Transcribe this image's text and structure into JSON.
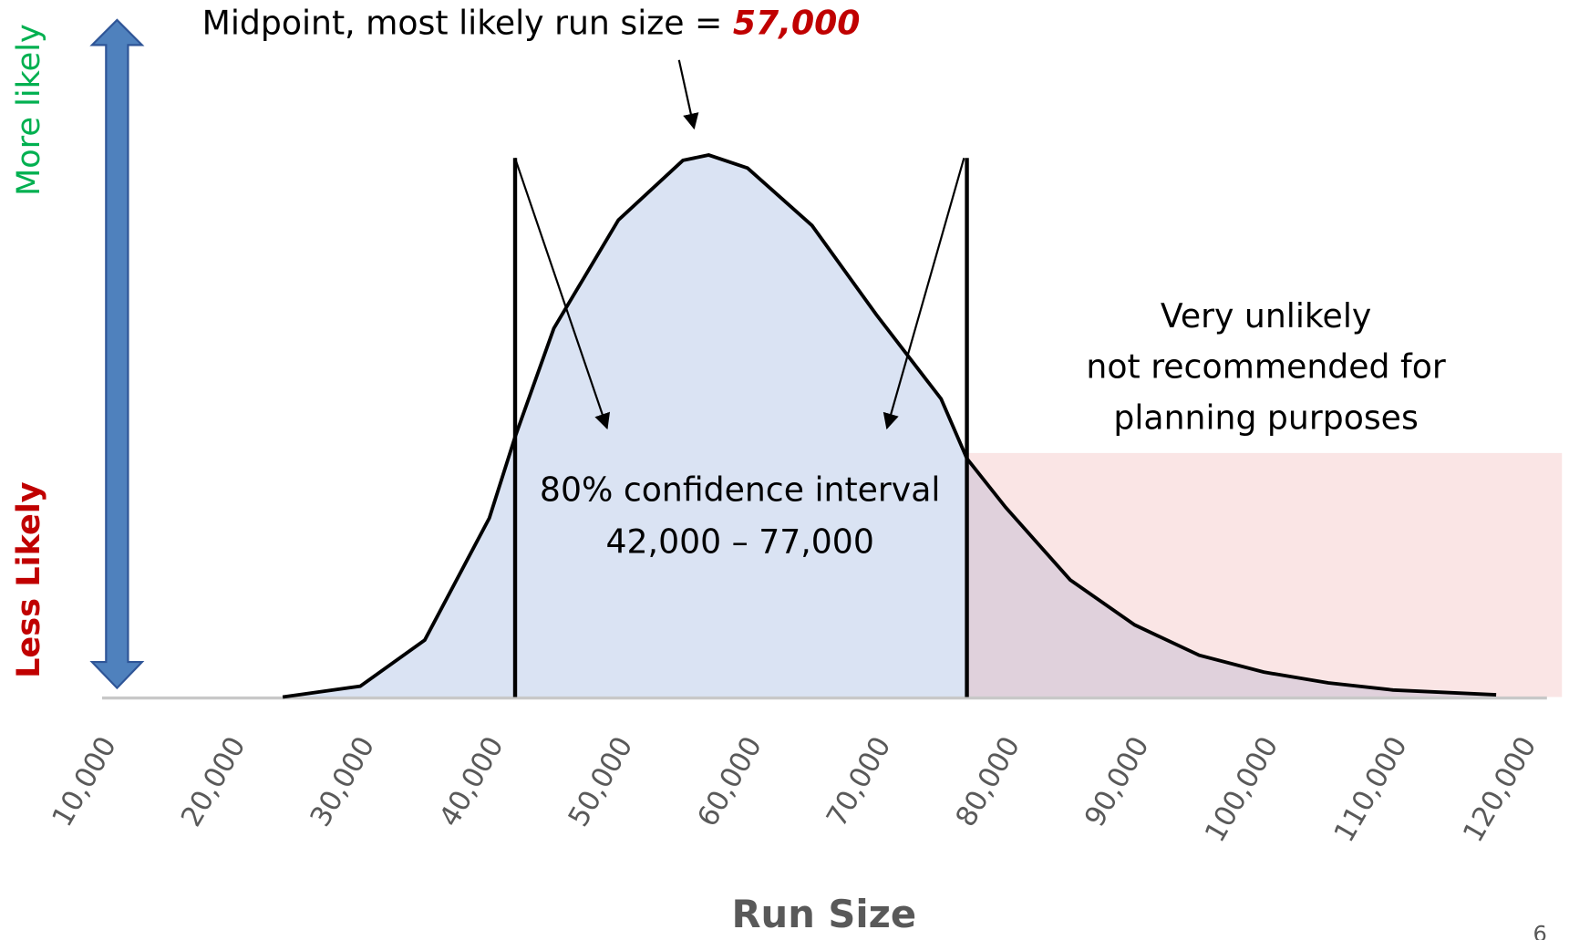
{
  "chart_data": {
    "type": "area",
    "annotation_prefix": "Midpoint, most likely run size = ",
    "midpoint_label": "57,000",
    "interval_title": "80% confidence interval",
    "interval_label": "42,000 – 77,000",
    "interval": [
      42000,
      77000
    ],
    "tail_note": [
      "Very unlikely",
      "not recommended for",
      "planning purposes"
    ],
    "y_top_label": "More likely",
    "y_bottom_label": "Less Likely",
    "xlabel": "Run Size",
    "page_number": "6",
    "color": "#dae3f3",
    "x": [
      24000,
      30000,
      35000,
      40000,
      42000,
      45000,
      50000,
      55000,
      57000,
      60000,
      65000,
      70000,
      75000,
      77000,
      80000,
      85000,
      90000,
      95000,
      100000,
      105000,
      110000,
      118000
    ],
    "values": [
      0,
      2,
      10.5,
      33,
      48,
      68,
      88,
      99,
      100,
      97.6,
      87,
      70.5,
      55,
      44,
      35,
      21.6,
      13.3,
      7.7,
      4.6,
      2.6,
      1.3,
      0.4
    ],
    "xlim": [
      10000,
      120000
    ],
    "ylim": [
      0,
      100
    ],
    "xticks": [
      {
        "value": 10000,
        "label": "10,000"
      },
      {
        "value": 20000,
        "label": "20,000"
      },
      {
        "value": 30000,
        "label": "30,000"
      },
      {
        "value": 40000,
        "label": "40,000"
      },
      {
        "value": 50000,
        "label": "50,000"
      },
      {
        "value": 60000,
        "label": "60,000"
      },
      {
        "value": 70000,
        "label": "70,000"
      },
      {
        "value": 80000,
        "label": "80,000"
      },
      {
        "value": 90000,
        "label": "90,000"
      },
      {
        "value": 100000,
        "label": "100,000"
      },
      {
        "value": 110000,
        "label": "110,000"
      },
      {
        "value": 120000,
        "label": "120,000"
      }
    ]
  }
}
